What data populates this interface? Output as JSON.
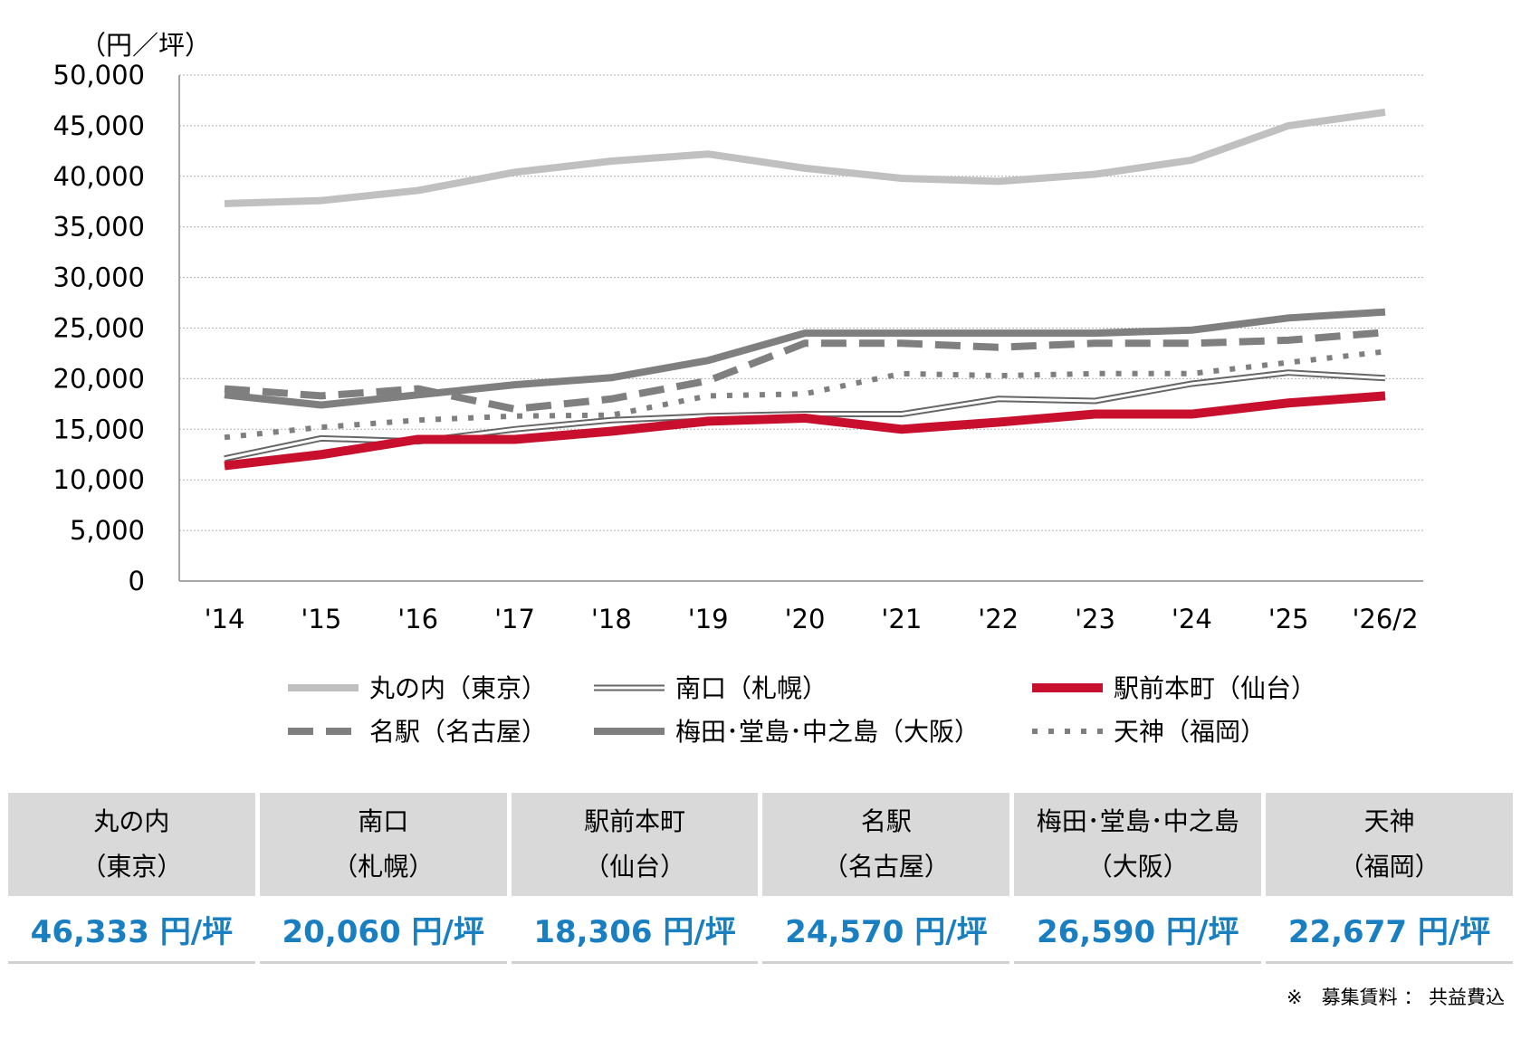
{
  "chart_data": {
    "type": "line",
    "unit_label": "（円／坪）",
    "ylim": [
      0,
      50000
    ],
    "yticks": [
      "50,000",
      "45,000",
      "40,000",
      "35,000",
      "30,000",
      "25,000",
      "20,000",
      "15,000",
      "10,000",
      "5,000",
      "0"
    ],
    "categories": [
      "'14",
      "'15",
      "'16",
      "'17",
      "'18",
      "'19",
      "'20",
      "'21",
      "'22",
      "'23",
      "'24",
      "'25",
      "'26/2"
    ],
    "grid": true,
    "legend_position": "bottom",
    "series": [
      {
        "name": "丸の内（東京）",
        "color": "#c0c0c0",
        "style": "solid-thick",
        "values": [
          37300,
          37600,
          38600,
          40400,
          41500,
          42200,
          40800,
          39800,
          39500,
          40200,
          41600,
          45000,
          46333
        ]
      },
      {
        "name": "南口（札幌）",
        "color": "#666666",
        "style": "double",
        "values": [
          12100,
          14100,
          13800,
          15000,
          15900,
          16300,
          16500,
          16500,
          18000,
          17800,
          19500,
          20600,
          20060
        ]
      },
      {
        "name": "駅前本町（仙台）",
        "color": "#c8102e",
        "style": "solid-thick",
        "values": [
          11400,
          12500,
          14000,
          14000,
          14800,
          15800,
          16100,
          15000,
          15700,
          16500,
          16500,
          17600,
          18306
        ]
      },
      {
        "name": "名駅（名古屋）",
        "color": "#7f7f7f",
        "style": "dashed",
        "values": [
          19000,
          18300,
          19000,
          17000,
          18000,
          19800,
          23500,
          23500,
          23100,
          23500,
          23500,
          23800,
          24570
        ]
      },
      {
        "name": "梅田･堂島･中之島（大阪）",
        "color": "#7f7f7f",
        "style": "solid-thick",
        "values": [
          18400,
          17400,
          18400,
          19400,
          20100,
          21800,
          24500,
          24500,
          24500,
          24500,
          24800,
          26000,
          26590
        ]
      },
      {
        "name": "天神（福岡）",
        "color": "#7f7f7f",
        "style": "dotted",
        "values": [
          14200,
          15200,
          15900,
          16300,
          16400,
          18300,
          18500,
          20500,
          20300,
          20500,
          20500,
          21600,
          22677
        ]
      }
    ]
  },
  "summary": [
    {
      "name_line1": "丸の内",
      "name_line2": "（東京）",
      "value": "46,333 円/坪"
    },
    {
      "name_line1": "南口",
      "name_line2": "（札幌）",
      "value": "20,060 円/坪"
    },
    {
      "name_line1": "駅前本町",
      "name_line2": "（仙台）",
      "value": "18,306 円/坪"
    },
    {
      "name_line1": "名駅",
      "name_line2": "（名古屋）",
      "value": "24,570 円/坪"
    },
    {
      "name_line1": "梅田･堂島･中之島",
      "name_line2": "（大阪）",
      "value": "26,590 円/坪"
    },
    {
      "name_line1": "天神",
      "name_line2": "（福岡）",
      "value": "22,677 円/坪"
    }
  ],
  "note": "※　募集賃料 ： 共益費込"
}
